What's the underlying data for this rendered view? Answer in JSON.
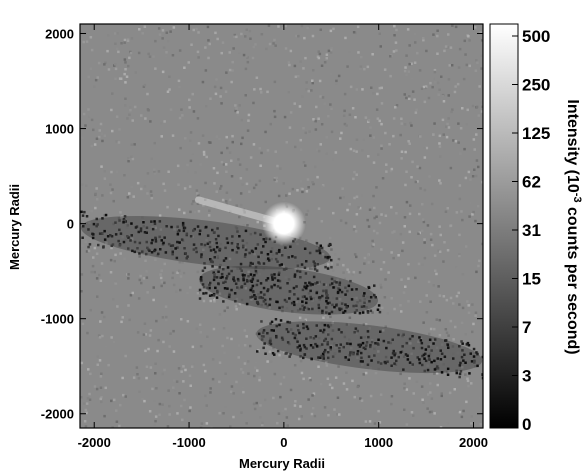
{
  "chart_data": {
    "type": "heatmap",
    "xlabel": "Mercury Radii",
    "ylabel": "Mercury Radii",
    "xlim": [
      -2150,
      2100
    ],
    "ylim": [
      -2150,
      2100
    ],
    "x_ticks": [
      -2000,
      -1000,
      0,
      1000,
      2000
    ],
    "y_ticks": [
      2000,
      1000,
      0,
      -1000,
      -2000
    ],
    "x_tick_labels": [
      "-2000",
      "-1000",
      "0",
      "1000",
      "2000"
    ],
    "y_tick_labels": [
      "2000",
      "1000",
      "0",
      "-1000",
      "-2000"
    ],
    "colorbar": {
      "label_prefix": "Intensity (10",
      "label_exponent": "-3",
      "label_suffix": " counts per second)",
      "scale": "log",
      "colormap": "grayscale",
      "ticks": [
        "500",
        "250",
        "125",
        "62",
        "31",
        "15",
        "7",
        "3",
        "0"
      ]
    },
    "features": [
      {
        "kind": "bright-source",
        "x": 0,
        "y": 0
      },
      {
        "kind": "tail",
        "from_x": 0,
        "from_y": 0,
        "to_x": -900,
        "to_y": 250
      },
      {
        "kind": "dark-band",
        "x_range": [
          -2150,
          500
        ],
        "y_center": -200
      },
      {
        "kind": "dark-band",
        "x_range": [
          -900,
          1000
        ],
        "y_center": -700
      },
      {
        "kind": "dark-band",
        "x_range": [
          -300,
          2100
        ],
        "y_center": -1300
      }
    ]
  }
}
